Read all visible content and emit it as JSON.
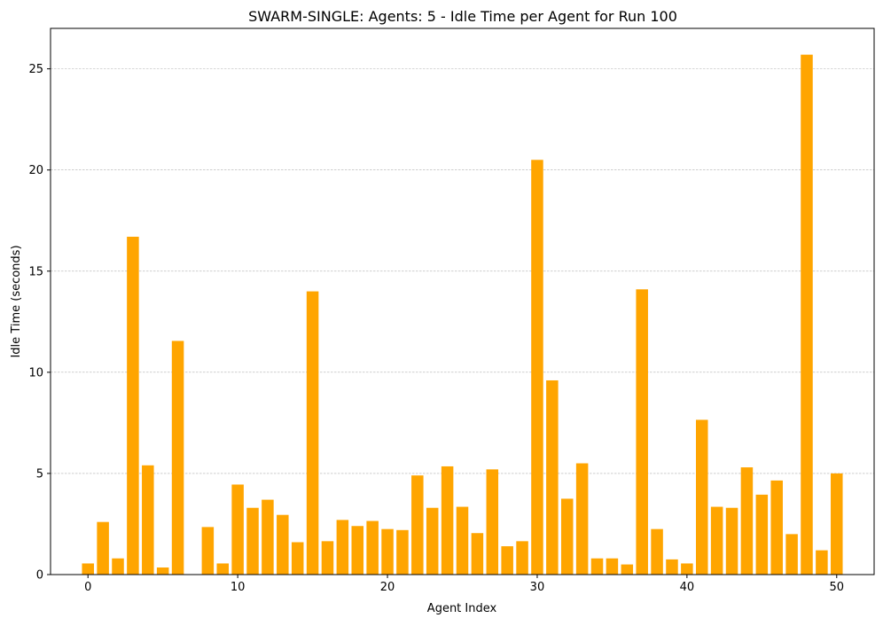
{
  "chart_data": {
    "type": "bar",
    "title": "SWARM-SINGLE: Agents: 5 - Idle Time per Agent for Run 100",
    "xlabel": "Agent Index",
    "ylabel": "Idle Time (seconds)",
    "x": [
      0,
      1,
      2,
      3,
      4,
      5,
      6,
      7,
      8,
      9,
      10,
      11,
      12,
      13,
      14,
      15,
      16,
      17,
      18,
      19,
      20,
      21,
      22,
      23,
      24,
      25,
      26,
      27,
      28,
      29,
      30,
      31,
      32,
      33,
      34,
      35,
      36,
      37,
      38,
      39,
      40,
      41,
      42,
      43,
      44,
      45,
      46,
      47,
      48,
      49,
      50
    ],
    "values": [
      0.55,
      2.6,
      0.8,
      16.7,
      5.4,
      0.35,
      11.55,
      0.0,
      2.35,
      0.55,
      4.45,
      3.3,
      3.7,
      2.95,
      1.6,
      14.0,
      1.65,
      2.7,
      2.4,
      2.65,
      2.25,
      2.2,
      4.9,
      3.3,
      5.35,
      3.35,
      2.05,
      5.2,
      1.4,
      1.65,
      20.5,
      9.6,
      3.75,
      5.5,
      0.8,
      0.8,
      0.5,
      14.1,
      2.25,
      0.75,
      0.55,
      7.65,
      3.35,
      3.3,
      5.3,
      3.95,
      4.65,
      2.0,
      25.7,
      1.2,
      5.0
    ],
    "xlim": [
      -2.5,
      52.5
    ],
    "ylim": [
      0,
      27
    ],
    "xticks": [
      0,
      10,
      20,
      30,
      40,
      50
    ],
    "yticks": [
      0,
      5,
      10,
      15,
      20,
      25
    ],
    "grid": "y-dashed",
    "bar_color": "#ffa500"
  }
}
